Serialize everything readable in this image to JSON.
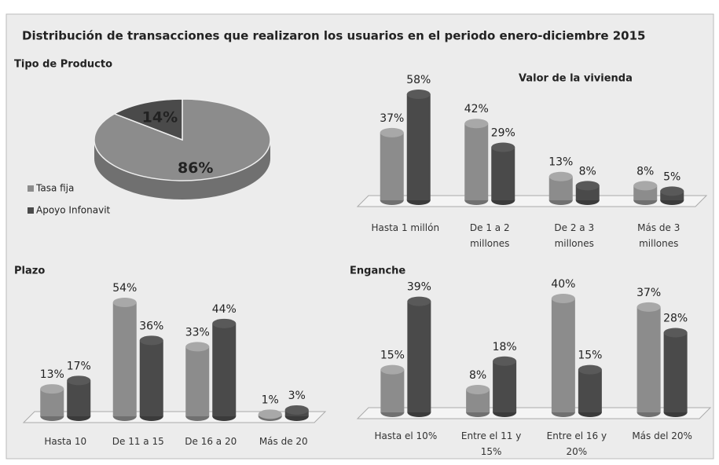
{
  "title": "Distribución de transacciones que realizaron los usuarios en el periodo enero-diciembre 2015",
  "chart_data": [
    {
      "type": "pie",
      "title": "Tipo de Producto",
      "categories": [
        "Tasa fija",
        "Apoyo Infonavit"
      ],
      "values": [
        86,
        14
      ],
      "value_labels": [
        "86%",
        "14%"
      ],
      "colors": [
        "#8c8c8c",
        "#4a4a4a"
      ]
    },
    {
      "type": "bar",
      "title": "Valor de la vivienda",
      "categories": [
        "Hasta 1 millón",
        "De 1 a 2 millones",
        "De 2 a 3 millones",
        "Más de 3 millones"
      ],
      "series": [
        {
          "color": "#8c8c8c",
          "values": [
            37,
            42,
            13,
            8
          ],
          "value_labels": [
            "37%",
            "42%",
            "13%",
            "8%"
          ]
        },
        {
          "color": "#4a4a4a",
          "values": [
            58,
            29,
            8,
            5
          ],
          "value_labels": [
            "58%",
            "29%",
            "8%",
            "5%"
          ]
        }
      ]
    },
    {
      "type": "bar",
      "title": "Plazo",
      "categories": [
        "Hasta 10",
        "De 11 a 15",
        "De 16 a 20",
        "Más de 20"
      ],
      "series": [
        {
          "color": "#8c8c8c",
          "values": [
            13,
            54,
            33,
            1
          ],
          "value_labels": [
            "13%",
            "54%",
            "33%",
            "1%"
          ]
        },
        {
          "color": "#4a4a4a",
          "values": [
            17,
            36,
            44,
            3
          ],
          "value_labels": [
            "17%",
            "36%",
            "44%",
            "3%"
          ]
        }
      ]
    },
    {
      "type": "bar",
      "title": "Enganche",
      "categories": [
        "Hasta el 10%",
        "Entre el 11 y 15%",
        "Entre el 16 y 20%",
        "Más del 20%"
      ],
      "series": [
        {
          "color": "#8c8c8c",
          "values": [
            15,
            8,
            40,
            37
          ],
          "value_labels": [
            "15%",
            "8%",
            "40%",
            "37%"
          ]
        },
        {
          "color": "#4a4a4a",
          "values": [
            39,
            18,
            15,
            28
          ],
          "value_labels": [
            "39%",
            "18%",
            "15%",
            "28%"
          ]
        }
      ]
    }
  ]
}
